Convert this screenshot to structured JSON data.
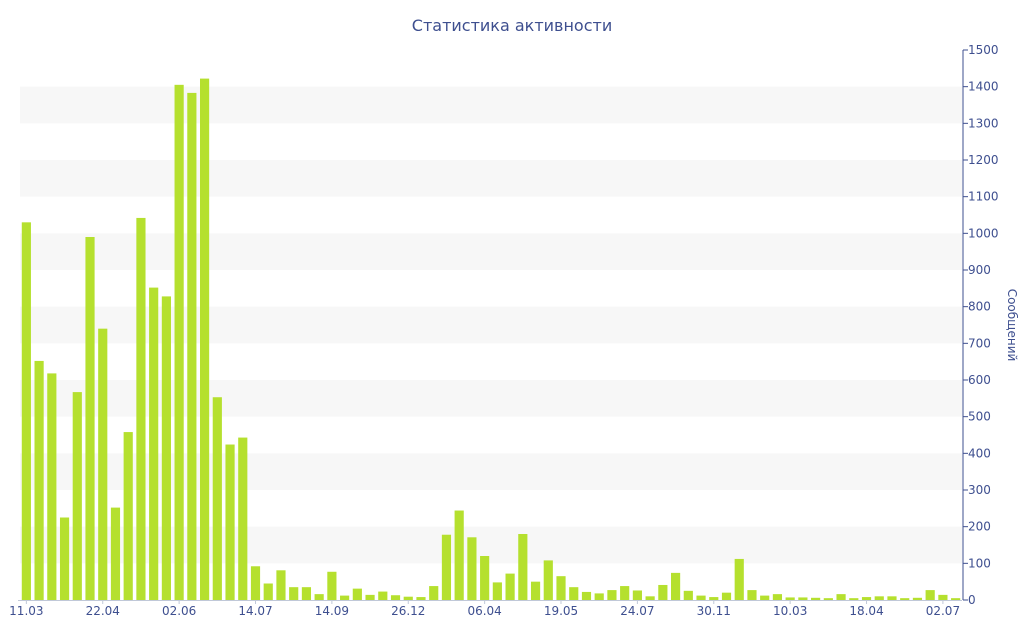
{
  "chart_data": {
    "type": "bar",
    "title": "Статистика активности",
    "xlabel": "",
    "ylabel": "Сообщений",
    "ylim": [
      0,
      1500
    ],
    "y_ticks": [
      0,
      100,
      200,
      300,
      400,
      500,
      600,
      700,
      800,
      900,
      1000,
      1100,
      1200,
      1300,
      1400,
      1500
    ],
    "y_axis_side": "right",
    "x_tick_labels": [
      {
        "index": 0,
        "label": "11.03"
      },
      {
        "index": 6,
        "label": "22.04"
      },
      {
        "index": 12,
        "label": "02.06"
      },
      {
        "index": 18,
        "label": "14.07"
      },
      {
        "index": 24,
        "label": "14.09"
      },
      {
        "index": 30,
        "label": "26.12"
      },
      {
        "index": 36,
        "label": "06.04"
      },
      {
        "index": 42,
        "label": "19.05"
      },
      {
        "index": 48,
        "label": "24.07"
      },
      {
        "index": 54,
        "label": "30.11"
      },
      {
        "index": 60,
        "label": "10.03"
      },
      {
        "index": 66,
        "label": "18.04"
      },
      {
        "index": 72,
        "label": "02.07"
      }
    ],
    "values": [
      1030,
      652,
      618,
      225,
      567,
      990,
      740,
      252,
      458,
      1042,
      852,
      828,
      1405,
      1383,
      1422,
      553,
      424,
      443,
      92,
      45,
      81,
      35,
      35,
      16,
      77,
      12,
      31,
      14,
      23,
      13,
      9,
      8,
      38,
      178,
      244,
      171,
      120,
      48,
      72,
      180,
      50,
      108,
      65,
      35,
      22,
      18,
      27,
      38,
      26,
      10,
      41,
      74,
      25,
      12,
      8,
      20,
      112,
      27,
      12,
      16,
      7,
      7,
      6,
      5,
      16,
      5,
      8,
      10,
      10,
      5,
      6,
      27,
      14,
      5
    ],
    "grid": "horizontal alternating bands",
    "legend": "none",
    "colors": {
      "bar": "#b5e02e",
      "band": "#f7f7f7",
      "text": "#3e4f8f",
      "axis": "#3e4f8f"
    }
  }
}
